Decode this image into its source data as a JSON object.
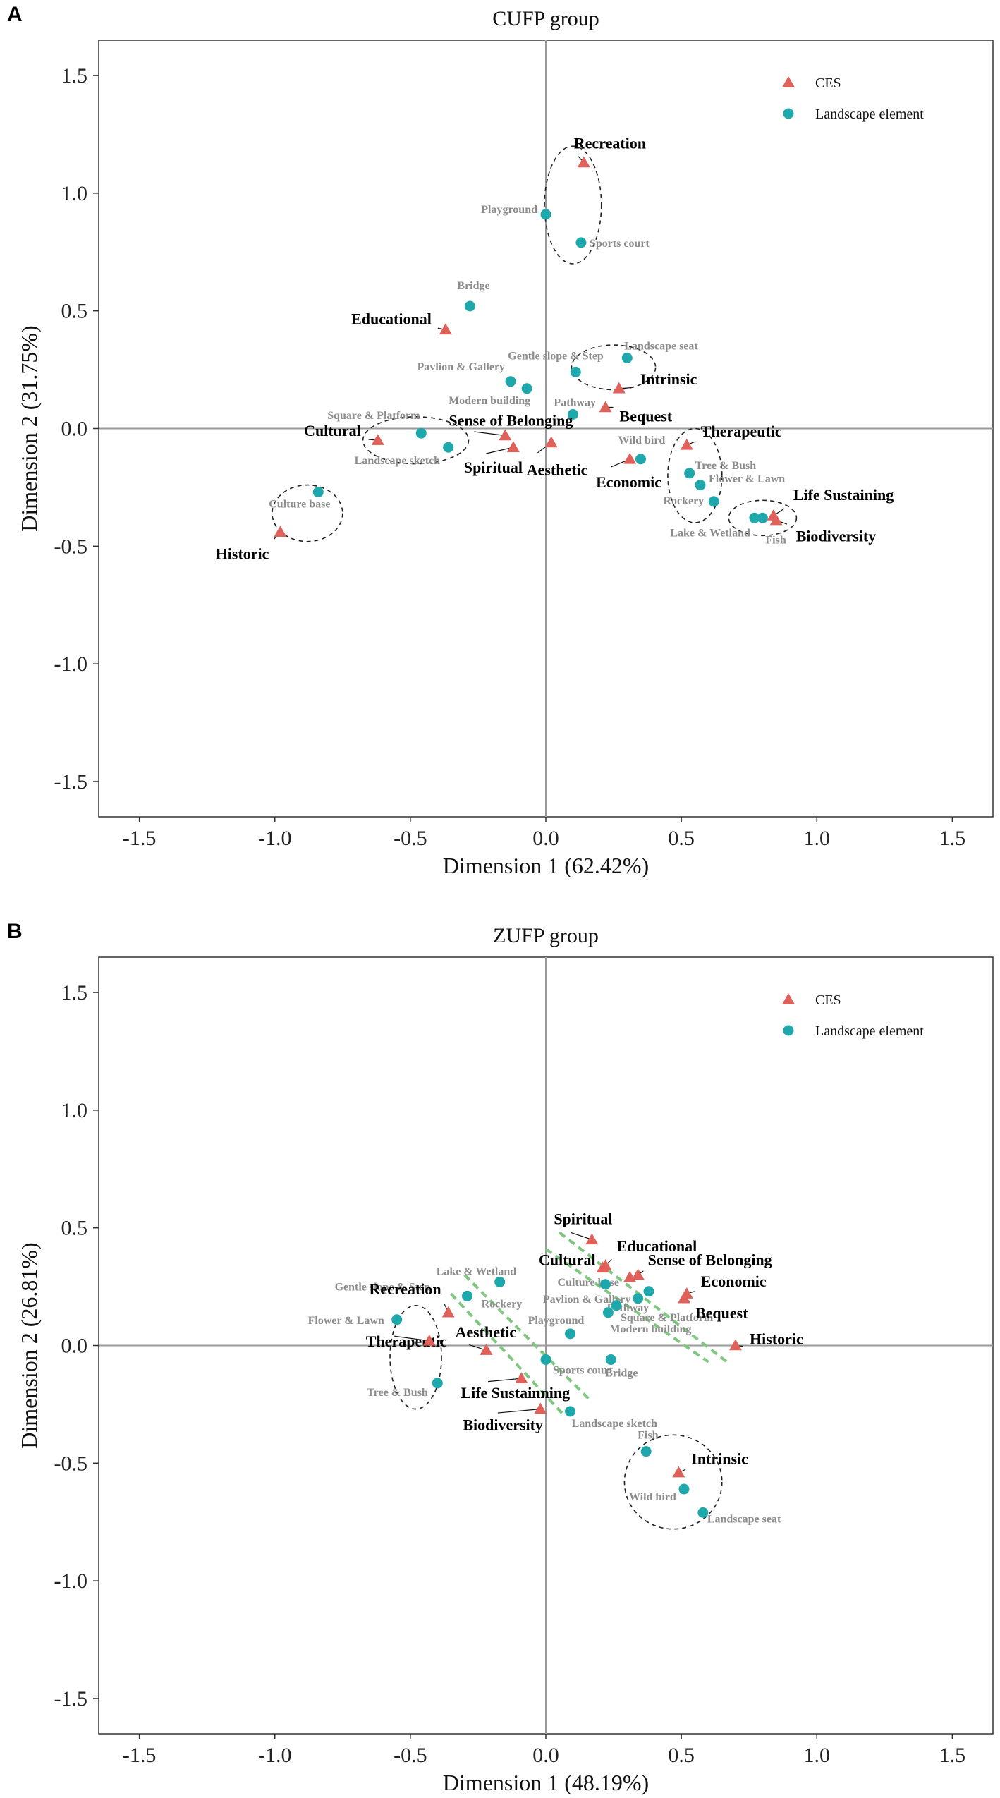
{
  "colors": {
    "ces": "#e0605a",
    "landscape": "#1fa8ac",
    "ces_text": "#000000",
    "landscape_text": "#8c8c8c",
    "green_dash": "#7ec77e",
    "zero_line": "#9a9a9a"
  },
  "chart_data": [
    {
      "panel": "A",
      "type": "scatter",
      "title": "CUFP group",
      "xlabel": "Dimension 1 (62.42%)",
      "ylabel": "Dimension 2 (31.75%)",
      "xlim": [
        -1.65,
        1.65
      ],
      "ylim": [
        -1.65,
        1.65
      ],
      "xticks": [
        "-1.5",
        "-1.0",
        "-0.5",
        "0.0",
        "0.5",
        "1.0",
        "1.5"
      ],
      "yticks": [
        "1.5",
        "1.0",
        "0.5",
        "0.0",
        "-0.5",
        "-1.0",
        "-1.5"
      ],
      "legend": {
        "position": "top-right",
        "ces": "CES",
        "landscape": "Landscape element"
      },
      "ces": [
        {
          "name": "Recreation",
          "x": 0.14,
          "y": 1.13
        },
        {
          "name": "Educational",
          "x": -0.37,
          "y": 0.42
        },
        {
          "name": "Intrinsic",
          "x": 0.27,
          "y": 0.17
        },
        {
          "name": "Bequest",
          "x": 0.22,
          "y": 0.09
        },
        {
          "name": "Sense of Belonging",
          "x": -0.15,
          "y": -0.03
        },
        {
          "name": "Cultural",
          "x": -0.62,
          "y": -0.05
        },
        {
          "name": "Spiritual",
          "x": -0.12,
          "y": -0.08
        },
        {
          "name": "Aesthetic",
          "x": 0.02,
          "y": -0.06
        },
        {
          "name": "Therapeutic",
          "x": 0.52,
          "y": -0.07
        },
        {
          "name": "Economic",
          "x": 0.31,
          "y": -0.13
        },
        {
          "name": "Life Sustaining",
          "x": 0.84,
          "y": -0.37
        },
        {
          "name": "Biodiversity",
          "x": 0.85,
          "y": -0.39
        },
        {
          "name": "Historic",
          "x": -0.98,
          "y": -0.44
        }
      ],
      "landscape": [
        {
          "name": "Playground",
          "x": 0.0,
          "y": 0.91
        },
        {
          "name": "Sports court",
          "x": 0.13,
          "y": 0.79
        },
        {
          "name": "Bridge",
          "x": -0.28,
          "y": 0.52
        },
        {
          "name": "Landscape seat",
          "x": 0.3,
          "y": 0.3
        },
        {
          "name": "Gentle slope & Step",
          "x": 0.11,
          "y": 0.24
        },
        {
          "name": "Pavlion & Gallery",
          "x": -0.13,
          "y": 0.2
        },
        {
          "name": "Modern building",
          "x": -0.07,
          "y": 0.17
        },
        {
          "name": "Pathway",
          "x": 0.1,
          "y": 0.06
        },
        {
          "name": "Square & Platform",
          "x": -0.46,
          "y": -0.02
        },
        {
          "name": "Landscape sketch",
          "x": -0.36,
          "y": -0.08
        },
        {
          "name": "Wild bird",
          "x": 0.35,
          "y": -0.13
        },
        {
          "name": "Tree & Bush",
          "x": 0.53,
          "y": -0.19
        },
        {
          "name": "Flower & Lawn",
          "x": 0.57,
          "y": -0.24
        },
        {
          "name": "Rockery",
          "x": 0.62,
          "y": -0.31
        },
        {
          "name": "Lake & Wetland",
          "x": 0.77,
          "y": -0.38
        },
        {
          "name": "Fish",
          "x": 0.8,
          "y": -0.38
        },
        {
          "name": "Culture base",
          "x": -0.84,
          "y": -0.27
        }
      ]
    },
    {
      "panel": "B",
      "type": "scatter",
      "title": "ZUFP group",
      "xlabel": "Dimension 1 (48.19%)",
      "ylabel": "Dimension 2 (26.81%)",
      "xlim": [
        -1.65,
        1.65
      ],
      "ylim": [
        -1.65,
        1.65
      ],
      "xticks": [
        "-1.5",
        "-1.0",
        "-0.5",
        "0.0",
        "0.5",
        "1.0",
        "1.5"
      ],
      "yticks": [
        "1.5",
        "1.0",
        "0.5",
        "0.0",
        "-0.5",
        "-1.0",
        "-1.5"
      ],
      "legend": {
        "position": "top-right",
        "ces": "CES",
        "landscape": "Landscape element"
      },
      "ces": [
        {
          "name": "Spiritual",
          "x": 0.17,
          "y": 0.45
        },
        {
          "name": "Educational",
          "x": 0.22,
          "y": 0.34
        },
        {
          "name": "Cultural",
          "x": 0.21,
          "y": 0.33
        },
        {
          "name": "Sense of Belonging",
          "x": 0.34,
          "y": 0.3
        },
        {
          "name": "Economic",
          "x": 0.52,
          "y": 0.22
        },
        {
          "name": "Bequest",
          "x": 0.51,
          "y": 0.2
        },
        {
          "name": "Historic",
          "x": 0.7,
          "y": 0.0
        },
        {
          "name": "Recreation",
          "x": -0.36,
          "y": 0.14
        },
        {
          "name": "Aesthetic",
          "x": -0.22,
          "y": -0.02
        },
        {
          "name": "Therapeutic",
          "x": -0.43,
          "y": 0.02
        },
        {
          "name": "Life Sustainning",
          "x": -0.09,
          "y": -0.14
        },
        {
          "name": "Biodiversity",
          "x": -0.02,
          "y": -0.27
        },
        {
          "name": "Intrinsic",
          "x": 0.49,
          "y": -0.54
        },
        {
          "name": "Sense of Belonging marker",
          "x": 0.31,
          "y": 0.29
        }
      ],
      "landscape": [
        {
          "name": "Gentle slope & Step",
          "x": -0.29,
          "y": 0.21
        },
        {
          "name": "Lake & Wetland",
          "x": -0.17,
          "y": 0.27
        },
        {
          "name": "Flower & Lawn",
          "x": -0.55,
          "y": 0.11
        },
        {
          "name": "Tree & Bush",
          "x": -0.4,
          "y": -0.16
        },
        {
          "name": "Rockery",
          "x": -0.29,
          "y": 0.21
        },
        {
          "name": "Culture base",
          "x": 0.22,
          "y": 0.26
        },
        {
          "name": "Pavlion & Gallery",
          "x": 0.26,
          "y": 0.17
        },
        {
          "name": "Pathway",
          "x": 0.34,
          "y": 0.2
        },
        {
          "name": "Square & Platform",
          "x": 0.38,
          "y": 0.23
        },
        {
          "name": "Modern building",
          "x": 0.23,
          "y": 0.14
        },
        {
          "name": "Playground",
          "x": 0.09,
          "y": 0.05
        },
        {
          "name": "Bridge",
          "x": 0.24,
          "y": -0.06
        },
        {
          "name": "Sports court",
          "x": 0.0,
          "y": -0.06
        },
        {
          "name": "Landscape sketch",
          "x": 0.09,
          "y": -0.28
        },
        {
          "name": "Fish",
          "x": 0.37,
          "y": -0.45
        },
        {
          "name": "Wild bird",
          "x": 0.51,
          "y": -0.61
        },
        {
          "name": "Landscape seat",
          "x": 0.58,
          "y": -0.71
        }
      ]
    }
  ]
}
